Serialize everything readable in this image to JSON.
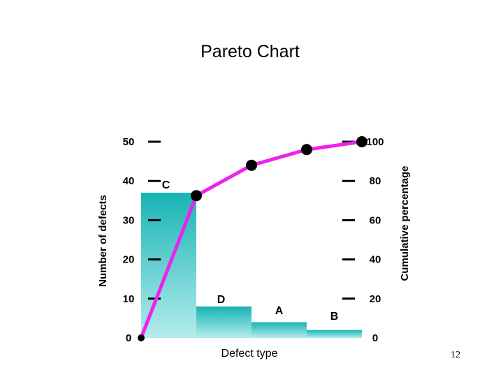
{
  "page_number": "12",
  "colors": {
    "bar_top": "#18b4b4",
    "bar_bottom": "#b4ecec",
    "line": "#ee22ee",
    "marker": "#000000",
    "axis": "#000000"
  },
  "chart_data": {
    "type": "bar",
    "title": "Pareto Chart",
    "xlabel": "Defect type",
    "ylabel": "Number of defects",
    "ylabel_right": "Cumulative percentage",
    "categories": [
      "C",
      "D",
      "A",
      "B"
    ],
    "values": [
      37,
      8,
      4,
      2
    ],
    "ylim": [
      0,
      50
    ],
    "y_ticks": [
      0,
      10,
      20,
      30,
      40,
      50
    ],
    "ylim_right": [
      0,
      100
    ],
    "y_ticks_right": [
      0,
      20,
      40,
      60,
      80,
      100
    ],
    "cumulative": {
      "x": [
        0,
        1,
        2,
        3,
        4
      ],
      "y": [
        0,
        72.5,
        88,
        96,
        100
      ]
    },
    "grid": false,
    "legend": "none"
  }
}
